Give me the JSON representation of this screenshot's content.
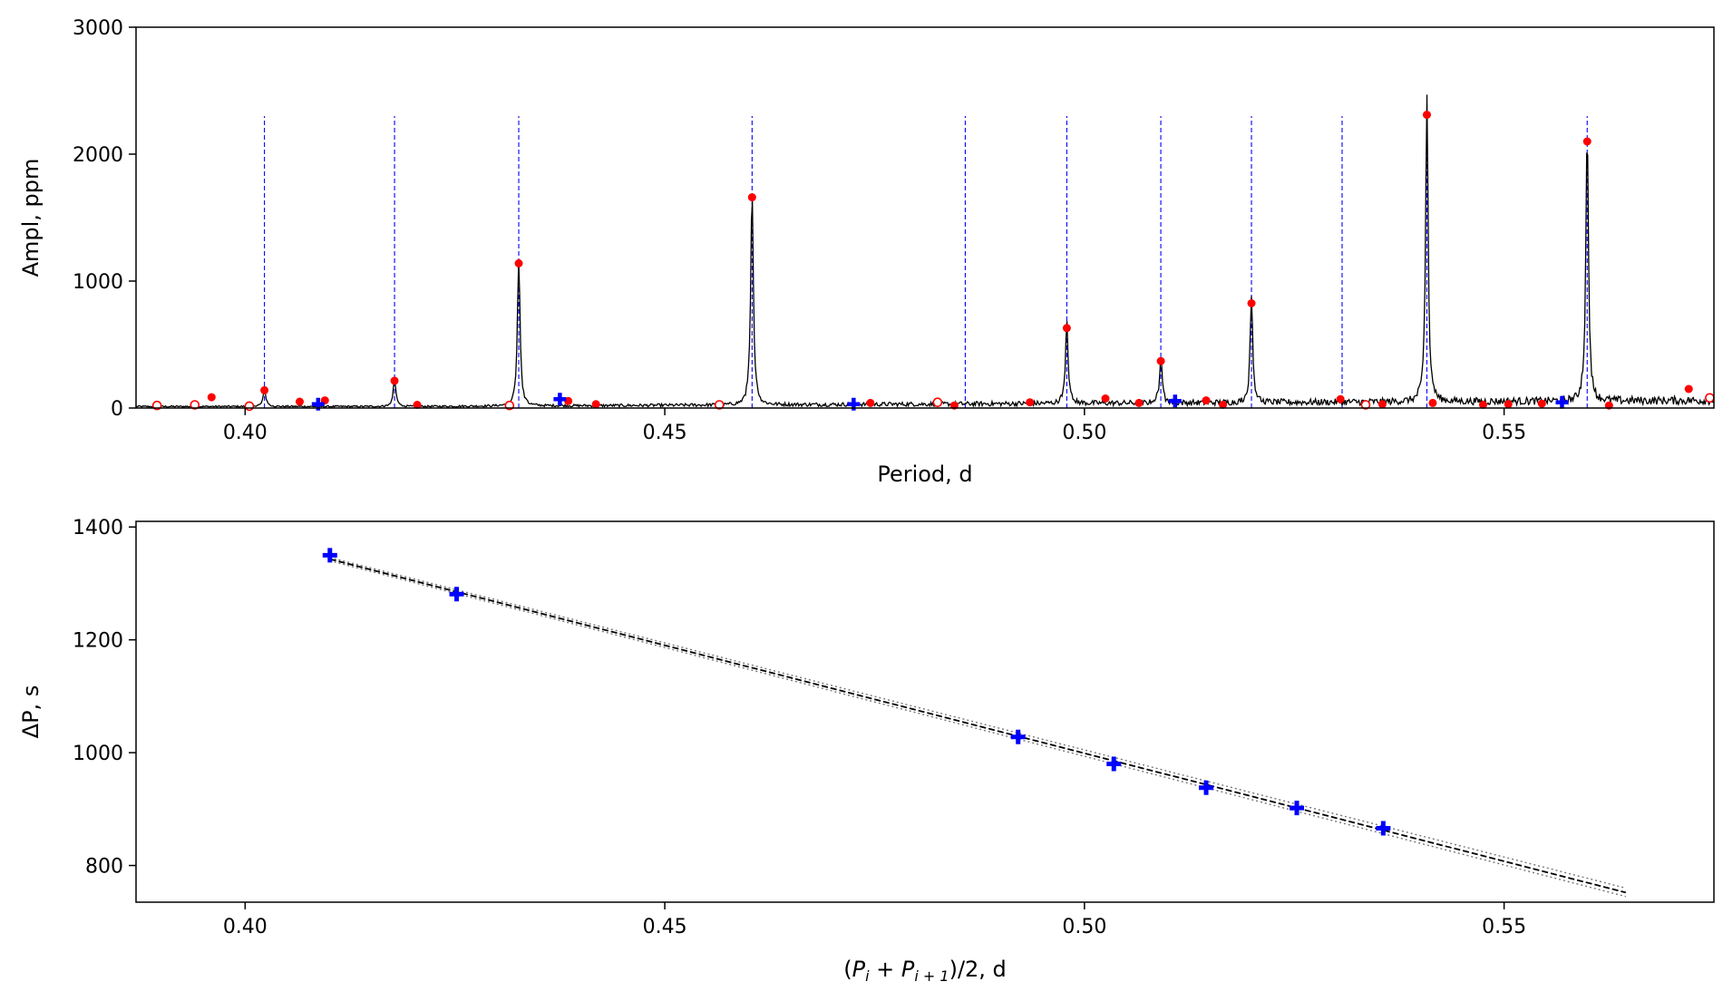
{
  "chart_data": [
    {
      "type": "line",
      "xlabel": "Period, d",
      "ylabel": "Ampl, ppm",
      "xlim": [
        0.387,
        0.575
      ],
      "ylim": [
        0,
        3000
      ],
      "xticks": [
        0.4,
        0.45,
        0.5,
        0.55
      ],
      "yticks": [
        0,
        1000,
        2000,
        3000
      ],
      "xtick_labels": [
        "0.40",
        "0.45",
        "0.50",
        "0.55"
      ],
      "ytick_labels": [
        "0",
        "1000",
        "2000",
        "3000"
      ],
      "grid": false,
      "colors": {
        "spectrum": "#000000",
        "peaks": "#ff0000",
        "blue_marks": "#0000ff",
        "vlines": "#0000ff"
      },
      "series": [
        {
          "role": "spectrum",
          "peaks": [
            {
              "x": 0.4023,
              "y": 140
            },
            {
              "x": 0.4178,
              "y": 215
            },
            {
              "x": 0.4326,
              "y": 1140
            },
            {
              "x": 0.4604,
              "y": 1660
            },
            {
              "x": 0.4979,
              "y": 630
            },
            {
              "x": 0.5091,
              "y": 370
            },
            {
              "x": 0.5199,
              "y": 825
            },
            {
              "x": 0.5408,
              "y": 2310
            },
            {
              "x": 0.5599,
              "y": 2100
            }
          ]
        },
        {
          "role": "red-filled-points",
          "x": [
            0.4023,
            0.4178,
            0.4326,
            0.4604,
            0.4979,
            0.5091,
            0.5199,
            0.5408,
            0.5599,
            0.396,
            0.4065,
            0.4095,
            0.4205,
            0.4385,
            0.4418,
            0.4745,
            0.4845,
            0.4935,
            0.5025,
            0.5065,
            0.5145,
            0.5165,
            0.5305,
            0.5355,
            0.5415,
            0.5475,
            0.5505,
            0.5545,
            0.5625,
            0.572
          ],
          "y": [
            140,
            215,
            1140,
            1660,
            630,
            370,
            825,
            2310,
            2100,
            85,
            50,
            60,
            25,
            55,
            30,
            40,
            20,
            45,
            75,
            40,
            60,
            25,
            70,
            30,
            40,
            25,
            30,
            35,
            20,
            150
          ]
        },
        {
          "role": "red-open-points",
          "x": [
            0.3895,
            0.394,
            0.4005,
            0.4315,
            0.4565,
            0.4825,
            0.5335,
            0.5745
          ],
          "y": [
            20,
            25,
            15,
            20,
            25,
            45,
            25,
            80
          ]
        },
        {
          "role": "blue-points",
          "x": [
            0.4087,
            0.4375,
            0.4725,
            0.5108,
            0.5569
          ],
          "y": [
            30,
            70,
            30,
            55,
            45
          ]
        }
      ],
      "vlines": [
        0.4023,
        0.4178,
        0.4326,
        0.4604,
        0.4858,
        0.4979,
        0.5091,
        0.5199,
        0.5307,
        0.5408,
        0.5599
      ],
      "vline_top": 2300
    },
    {
      "type": "scatter",
      "xlabel": "(P_i + P_{i+1})/2, d",
      "xlabel_parts": {
        "open": "(",
        "p1": "P",
        "s1": "i",
        "plus": " + ",
        "p2": "P",
        "s2": "i + 1",
        "close": ")/2, d"
      },
      "ylabel": "ΔP, s",
      "xlim": [
        0.387,
        0.575
      ],
      "ylim": [
        735,
        1410
      ],
      "xticks": [
        0.4,
        0.45,
        0.5,
        0.55
      ],
      "yticks": [
        800,
        1000,
        1200,
        1400
      ],
      "xtick_labels": [
        "0.40",
        "0.45",
        "0.50",
        "0.55"
      ],
      "ytick_labels": [
        "800",
        "1000",
        "1200",
        "1400"
      ],
      "grid": false,
      "colors": {
        "points": "#0000ff",
        "fit": "#000000",
        "fit_band": "#777777"
      },
      "x": [
        0.4101,
        0.4252,
        0.4921,
        0.5035,
        0.5145,
        0.5253,
        0.5356
      ],
      "y": [
        1350,
        1281,
        1028,
        980,
        938,
        902,
        866
      ],
      "fit": {
        "x": [
          0.4101,
          0.5645
        ],
        "y": [
          1343,
          752
        ]
      },
      "fit_band": {
        "x": [
          0.4101,
          0.5645
        ],
        "upper": [
          1346,
          760
        ],
        "lower": [
          1340,
          745
        ]
      }
    }
  ]
}
